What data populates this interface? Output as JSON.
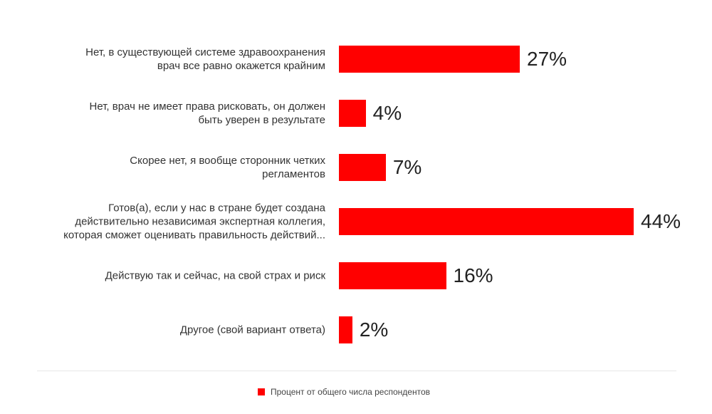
{
  "chart_data": {
    "type": "bar",
    "orientation": "horizontal",
    "categories": [
      "Нет, в существующей системе здравоохранения\nврач все равно окажется крайним",
      "Нет, врач не имеет права рисковать, он должен\nбыть уверен в результате",
      "Скорее нет, я вообще сторонник четких\nрегламентов",
      "Готов(а), если у нас в стране будет создана\nдействительно независимая экспертная коллегия,\nкоторая сможет оценивать правильность действий...",
      "Действую так и сейчас, на свой страх и риск",
      "Другое (свой вариант ответа)"
    ],
    "series": [
      {
        "name": "Процент от общего числа респондентов",
        "color": "#ff0000",
        "values": [
          27,
          4,
          7,
          44,
          16,
          2
        ],
        "value_labels": [
          "27%",
          "4%",
          "7%",
          "44%",
          "16%",
          "2%"
        ]
      }
    ],
    "legend": "bottom"
  }
}
